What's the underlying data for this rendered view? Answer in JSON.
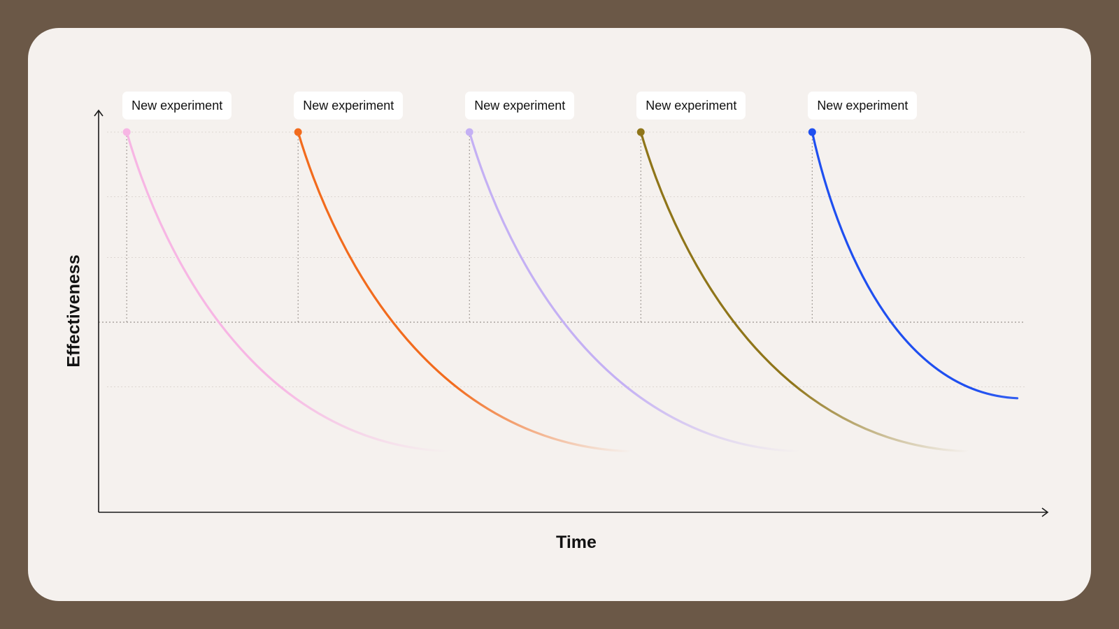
{
  "chart_data": {
    "type": "line",
    "title": "",
    "xlabel": "Time",
    "ylabel": "Effectiveness",
    "xlim": [
      0,
      100
    ],
    "ylim": [
      0,
      100
    ],
    "grid": true,
    "threshold": 50,
    "gridlines_y": [
      33,
      50,
      67,
      83,
      100
    ],
    "series": [
      {
        "label": "New experiment",
        "color": "#f7b6e4",
        "x": [
          3,
          37.6
        ],
        "y": [
          100,
          16
        ],
        "start_color": "#f7b6e4"
      },
      {
        "label": "New experiment",
        "color": "#f26b1d",
        "x": [
          21.3,
          56.9
        ],
        "y": [
          100,
          16
        ],
        "start_color": "#f26b1d"
      },
      {
        "label": "New experiment",
        "color": "#c4b0f4",
        "x": [
          39.6,
          74.9
        ],
        "y": [
          100,
          16
        ],
        "start_color": "#c4b0f4"
      },
      {
        "label": "New experiment",
        "color": "#8f7519",
        "x": [
          57.9,
          92.9
        ],
        "y": [
          100,
          16
        ],
        "start_color": "#8f7519"
      },
      {
        "label": "New experiment",
        "color": "#1f4ff0",
        "x": [
          76.2,
          98.1
        ],
        "y": [
          100,
          30
        ],
        "start_color": "#1f4ff0"
      }
    ]
  }
}
